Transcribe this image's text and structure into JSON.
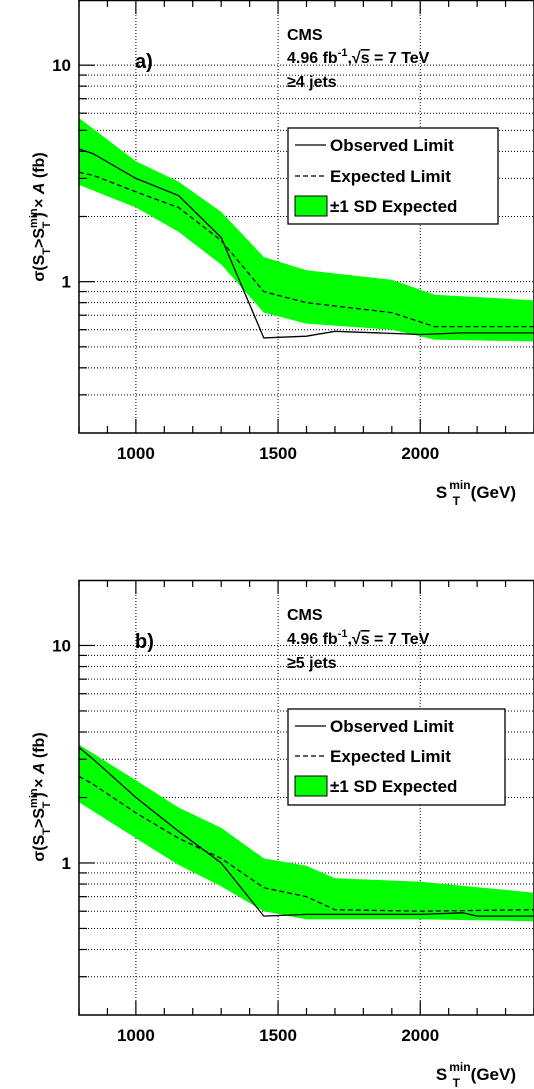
{
  "chart_data": [
    {
      "type": "line",
      "panel_label": "a)",
      "annotations": [
        "CMS",
        "4.96 fb",
        "-1",
        ",",
        "√",
        "s",
        " = 7 TeV",
        "≥4 jets"
      ],
      "xlim": [
        800,
        2400
      ],
      "ylim": [
        0.2,
        20
      ],
      "yscale": "log",
      "x_ticks": [
        1000,
        1500,
        2000
      ],
      "y_ticks": [
        {
          "value": 1,
          "label": "1"
        },
        {
          "value": 10,
          "label": "10"
        }
      ],
      "xlabel": {
        "main": "S",
        "sub": "T",
        "sup": "min",
        "unit": " (GeV)"
      },
      "ylabel": {
        "a": "σ(S",
        "a_sub": "T",
        "b": ">S",
        "b_sub": "T",
        "b_sup": "min",
        "c": ") × ",
        "d": "A",
        "e": " (fb)"
      },
      "grid": true,
      "legend_placement": "upper-right",
      "series": [
        {
          "name": "Observed Limit",
          "style": "solid",
          "x": [
            800,
            850,
            1000,
            1150,
            1300,
            1450,
            1600,
            1700,
            2000,
            2150,
            2400
          ],
          "y": [
            4.1,
            3.9,
            3.0,
            2.5,
            1.6,
            0.55,
            0.56,
            0.59,
            0.57,
            0.58,
            0.58
          ]
        },
        {
          "name": "Expected Limit",
          "style": "dashed",
          "x": [
            800,
            850,
            1000,
            1150,
            1300,
            1450,
            1600,
            1900,
            2050,
            2400
          ],
          "y": [
            3.2,
            3.1,
            2.6,
            2.2,
            1.55,
            0.9,
            0.8,
            0.72,
            0.62,
            0.62
          ]
        },
        {
          "name": "±1 SD Expected",
          "style": "band",
          "color": "#00ff00",
          "x": [
            800,
            1000,
            1150,
            1300,
            1450,
            1600,
            1900,
            2050,
            2400
          ],
          "y_low": [
            2.8,
            2.2,
            1.7,
            1.2,
            0.72,
            0.64,
            0.6,
            0.54,
            0.53
          ],
          "y_high": [
            5.7,
            3.6,
            2.9,
            2.1,
            1.3,
            1.13,
            1.02,
            0.87,
            0.82
          ]
        }
      ]
    },
    {
      "type": "line",
      "panel_label": "b)",
      "annotations": [
        "CMS",
        "4.96 fb",
        "-1",
        ",",
        "√",
        "s",
        " = 7 TeV",
        "≥5 jets"
      ],
      "xlim": [
        800,
        2400
      ],
      "ylim": [
        0.2,
        20
      ],
      "yscale": "log",
      "x_ticks": [
        1000,
        1500,
        2000
      ],
      "y_ticks": [
        {
          "value": 1,
          "label": "1"
        },
        {
          "value": 10,
          "label": "10"
        }
      ],
      "xlabel": {
        "main": "S",
        "sub": "T",
        "sup": "min",
        "unit": " (GeV)"
      },
      "ylabel": {
        "a": "σ(S",
        "a_sub": "T",
        "b": ">S",
        "b_sub": "T",
        "b_sup": "min",
        "c": ") × ",
        "d": "A",
        "e": " (fb)"
      },
      "grid": true,
      "legend_placement": "upper-right",
      "series": [
        {
          "name": "Observed Limit",
          "style": "solid",
          "x": [
            800,
            850,
            1000,
            1150,
            1300,
            1450,
            1600,
            2000,
            2150,
            2200,
            2400
          ],
          "y": [
            3.4,
            3.0,
            2.0,
            1.4,
            1.0,
            0.57,
            0.58,
            0.58,
            0.59,
            0.57,
            0.57
          ]
        },
        {
          "name": "Expected Limit",
          "style": "dashed",
          "x": [
            800,
            850,
            1000,
            1150,
            1300,
            1450,
            1600,
            1700,
            2000,
            2400
          ],
          "y": [
            2.5,
            2.3,
            1.7,
            1.3,
            1.05,
            0.77,
            0.7,
            0.61,
            0.6,
            0.61
          ]
        },
        {
          "name": "±1 SD Expected",
          "style": "band",
          "color": "#00ff00",
          "x": [
            800,
            1000,
            1150,
            1300,
            1450,
            1600,
            1700,
            2000,
            2400
          ],
          "y_low": [
            1.9,
            1.3,
            0.98,
            0.78,
            0.6,
            0.55,
            0.55,
            0.55,
            0.54
          ],
          "y_high": [
            3.5,
            2.4,
            1.8,
            1.45,
            1.05,
            0.97,
            0.85,
            0.82,
            0.73
          ]
        }
      ]
    }
  ]
}
